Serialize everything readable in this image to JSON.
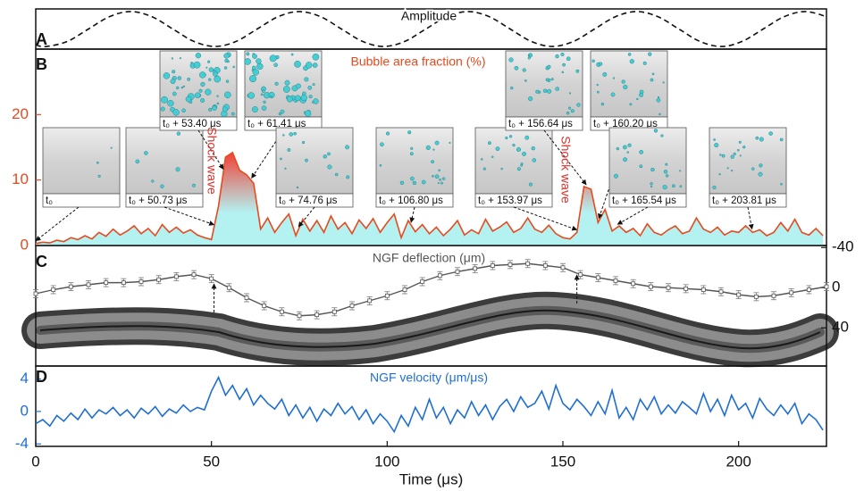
{
  "chart_data": [
    {
      "type": "line",
      "panel": "A",
      "title": "Amplitude",
      "xlim": [
        0,
        225
      ],
      "ylim": [
        -1.15,
        1.15
      ],
      "series": [
        {
          "color": "#111111",
          "dash": true,
          "smooth": true,
          "x": [
            0,
            3,
            9,
            15,
            21,
            27,
            33,
            39,
            45,
            51,
            57,
            63,
            69,
            75,
            81,
            87,
            93,
            99,
            105,
            111,
            117,
            123,
            129,
            135,
            141,
            147,
            153,
            159,
            165,
            171,
            177,
            183,
            189,
            195,
            201,
            207,
            213,
            219,
            225
          ],
          "values": [
            -0.92,
            -1,
            -0.71,
            0,
            0.71,
            1,
            0.71,
            0,
            -0.71,
            -1,
            -0.71,
            0,
            0.71,
            1,
            0.71,
            0,
            -0.71,
            -1,
            -0.71,
            0,
            0.71,
            1,
            0.71,
            0,
            -0.71,
            -1,
            -0.71,
            0,
            0.71,
            1,
            0.71,
            0,
            -0.71,
            -1,
            -0.71,
            0,
            0.71,
            1,
            0.71
          ]
        }
      ]
    },
    {
      "type": "area",
      "panel": "B",
      "title": "Bubble area fraction (%)",
      "xlim": [
        0,
        225
      ],
      "ylim": [
        0,
        30
      ],
      "yticks": [
        0,
        10,
        20
      ],
      "axis_color": "#e8491d",
      "fill_colors": [
        "#f0453a",
        "#b4f2f2"
      ],
      "series": [
        {
          "color": "#e8491d",
          "x": [
            0,
            2,
            4,
            6,
            8,
            10,
            12,
            14,
            16,
            18,
            20,
            22,
            24,
            26,
            28,
            30,
            32,
            34,
            36,
            38,
            40,
            42,
            44,
            46,
            48,
            50,
            52,
            54,
            56,
            58,
            60,
            62,
            64,
            66,
            68,
            70,
            72,
            74,
            76,
            78,
            80,
            82,
            84,
            86,
            88,
            90,
            92,
            94,
            96,
            98,
            100,
            102,
            104,
            106,
            108,
            110,
            112,
            114,
            116,
            118,
            120,
            122,
            124,
            126,
            128,
            130,
            132,
            134,
            136,
            138,
            140,
            142,
            144,
            146,
            148,
            150,
            152,
            154,
            156,
            158,
            160,
            162,
            164,
            166,
            168,
            170,
            172,
            174,
            176,
            178,
            180,
            182,
            184,
            186,
            188,
            190,
            192,
            194,
            196,
            198,
            200,
            202,
            204,
            206,
            208,
            210,
            212,
            214,
            216,
            218,
            220,
            222,
            224
          ],
          "values": [
            0.3,
            0.5,
            0.4,
            0.8,
            0.6,
            1.2,
            0.9,
            1.5,
            1.0,
            2.0,
            1.4,
            2.5,
            1.6,
            2.2,
            3.0,
            1.8,
            2.6,
            1.5,
            3.2,
            2.0,
            2.8,
            1.9,
            2.4,
            1.6,
            1.2,
            0.9,
            6.0,
            13.5,
            14.2,
            11.5,
            10.8,
            9.5,
            2.5,
            4.2,
            2.0,
            3.5,
            4.8,
            1.5,
            4.0,
            2.2,
            3.8,
            2.0,
            4.5,
            2.5,
            3.5,
            1.8,
            3.9,
            2.6,
            4.1,
            2.0,
            3.5,
            4.8,
            1.2,
            3.8,
            2.1,
            3.2,
            1.8,
            2.8,
            1.5,
            2.5,
            3.8,
            1.6,
            2.4,
            1.8,
            4.0,
            2.2,
            2.8,
            3.6,
            2.0,
            2.6,
            4.2,
            2.5,
            2.0,
            3.1,
            1.8,
            1.2,
            1.0,
            2.0,
            9.0,
            8.6,
            3.5,
            5.5,
            2.2,
            3.0,
            2.0,
            2.6,
            1.5,
            3.3,
            2.0,
            1.6,
            2.4,
            3.0,
            1.8,
            2.2,
            4.2,
            2.5,
            2.0,
            2.8,
            1.6,
            2.2,
            2.0,
            3.0,
            2.0,
            2.4,
            1.5,
            2.0,
            3.5,
            2.2,
            4.0,
            2.0,
            1.6,
            2.6,
            1.5
          ]
        }
      ],
      "insets": [
        {
          "label": "t₀",
          "time": 0
        },
        {
          "label": "t₀ + 50.73 μs",
          "time": 50.73
        },
        {
          "label": "t₀ + 53.40 μs",
          "time": 53.4
        },
        {
          "label": "t₀ + 61.41 μs",
          "time": 61.41
        },
        {
          "label": "t₀ + 74.76 μs",
          "time": 74.76
        },
        {
          "label": "t₀ + 106.80 μs",
          "time": 106.8
        },
        {
          "label": "t₀ + 153.97 μs",
          "time": 153.97
        },
        {
          "label": "t₀ + 156.64 μs",
          "time": 156.64
        },
        {
          "label": "t₀ + 160.20 μs",
          "time": 160.2
        },
        {
          "label": "t₀ + 165.54 μs",
          "time": 165.54
        },
        {
          "label": "t₀ + 203.81 μs",
          "time": 203.81
        }
      ],
      "annotations": [
        "Shock wave",
        "Shock wave"
      ]
    },
    {
      "type": "line",
      "panel": "C",
      "title": "NGF deflection (μm)",
      "xlim": [
        0,
        225
      ],
      "y2lim": [
        78,
        -42
      ],
      "y2ticks": [
        -40,
        0,
        40
      ],
      "axis_color": "#111111",
      "series": [
        {
          "color": "#555555",
          "axis": "y2",
          "error": 4,
          "x": [
            0,
            5,
            10,
            15,
            20,
            25,
            30,
            35,
            40,
            45,
            50,
            55,
            60,
            65,
            70,
            75,
            80,
            85,
            90,
            95,
            100,
            105,
            110,
            115,
            120,
            125,
            130,
            135,
            140,
            145,
            150,
            155,
            160,
            165,
            170,
            175,
            180,
            185,
            190,
            195,
            200,
            205,
            210,
            215,
            220,
            225
          ],
          "values": [
            6,
            2,
            -1,
            -3,
            -5,
            -5,
            -6,
            -8,
            -11,
            -13,
            -9,
            0,
            10,
            18,
            24,
            28,
            27,
            24,
            18,
            13,
            8,
            2,
            -6,
            -12,
            -16,
            -19,
            -22,
            -23,
            -24,
            -22,
            -20,
            -13,
            -10,
            -7,
            -4,
            -1,
            0,
            1,
            2,
            4,
            7,
            9,
            8,
            5,
            2,
            -1
          ]
        }
      ]
    },
    {
      "type": "line",
      "panel": "D",
      "title": "NGF velocity (μm/μs)",
      "xlim": [
        0,
        225
      ],
      "ylim": [
        -4.3,
        5.6
      ],
      "yticks": [
        -4,
        0,
        4
      ],
      "xticks": [
        0,
        50,
        100,
        150,
        200
      ],
      "xlabel": "Time (μs)",
      "axis_color": "#1f6fd1",
      "series": [
        {
          "color": "#1f6fd1",
          "x": [
            0,
            2,
            4,
            6,
            8,
            10,
            12,
            14,
            16,
            18,
            20,
            22,
            24,
            26,
            28,
            30,
            32,
            34,
            36,
            38,
            40,
            42,
            44,
            46,
            48,
            50,
            52,
            54,
            56,
            58,
            60,
            62,
            64,
            66,
            68,
            70,
            72,
            74,
            76,
            78,
            80,
            82,
            84,
            86,
            88,
            90,
            92,
            94,
            96,
            98,
            100,
            102,
            104,
            106,
            108,
            110,
            112,
            114,
            116,
            118,
            120,
            122,
            124,
            126,
            128,
            130,
            132,
            134,
            136,
            138,
            140,
            142,
            144,
            146,
            148,
            150,
            152,
            154,
            156,
            158,
            160,
            162,
            164,
            166,
            168,
            170,
            172,
            174,
            176,
            178,
            180,
            182,
            184,
            186,
            188,
            190,
            192,
            194,
            196,
            198,
            200,
            202,
            204,
            206,
            208,
            210,
            212,
            214,
            216,
            218,
            220,
            222,
            224
          ],
          "values": [
            -1.5,
            -1.0,
            -1.8,
            -0.5,
            -1.2,
            -0.2,
            -1.0,
            0.3,
            -0.8,
            0.2,
            -0.3,
            0.5,
            -0.5,
            0.2,
            -0.8,
            0.4,
            -0.3,
            0.6,
            -0.6,
            0.3,
            -0.2,
            0.8,
            0.0,
            0.5,
            0.2,
            2.5,
            4.2,
            2.0,
            3.2,
            1.5,
            2.8,
            0.8,
            2.0,
            1.0,
            0.3,
            1.5,
            -0.5,
            0.8,
            -0.8,
            0.5,
            -1.2,
            0.3,
            -0.5,
            1.0,
            -0.3,
            0.6,
            -1.0,
            0.2,
            -1.5,
            -0.3,
            -1.2,
            -2.5,
            -0.5,
            -1.8,
            0.5,
            -1.0,
            1.5,
            -0.8,
            0.5,
            -1.5,
            0.2,
            -0.8,
            1.2,
            -0.5,
            0.8,
            -1.0,
            0.6,
            1.5,
            0.0,
            1.8,
            0.5,
            1.0,
            2.5,
            0.3,
            3.2,
            1.0,
            0.2,
            1.5,
            0.6,
            -0.5,
            1.2,
            -0.3,
            2.6,
            -0.8,
            0.5,
            -1.0,
            1.5,
            0.2,
            1.8,
            -0.3,
            0.8,
            -0.2,
            1.2,
            0.5,
            -0.3,
            2.2,
            0.0,
            1.5,
            -0.5,
            2.0,
            0.2,
            1.0,
            -0.8,
            1.6,
            0.3,
            -0.5,
            0.8,
            -0.3,
            1.0,
            -1.5,
            -0.3,
            -1.0,
            -2.3
          ]
        }
      ]
    }
  ]
}
